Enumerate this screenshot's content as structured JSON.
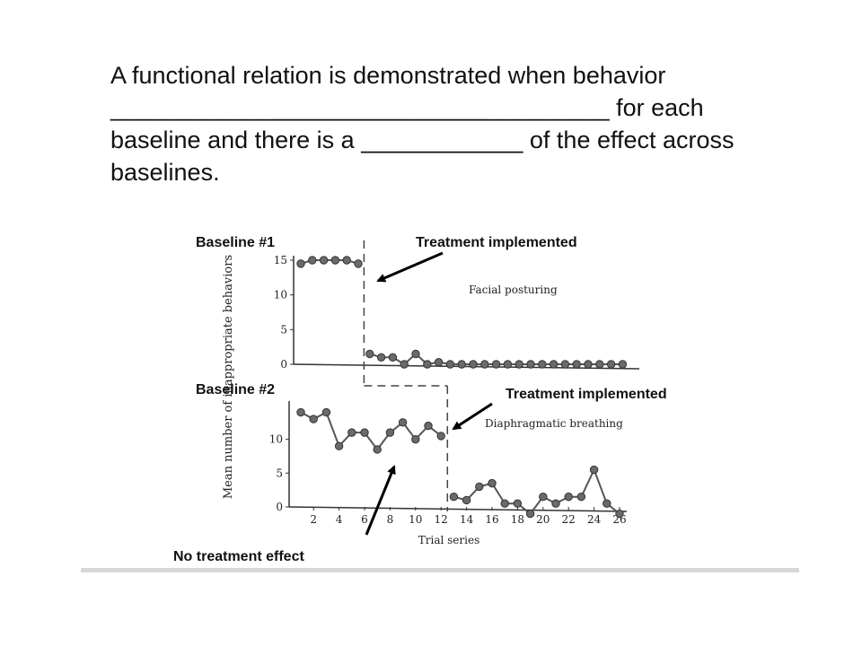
{
  "slide": {
    "line1": "A functional relation is demonstrated when behavior",
    "blank1": "_____________________________________",
    "line2_end": " for each",
    "line3_start": "baseline and there is a ",
    "blank2": "____________",
    "line3_end": " of the effect across",
    "line4": "baselines."
  },
  "callouts": {
    "baseline1": "Baseline #1",
    "treatment1": "Treatment implemented",
    "baseline2": "Baseline #2",
    "treatment2": "Treatment implemented",
    "no_effect": "No treatment effect"
  },
  "chart_data": [
    {
      "type": "line",
      "title": "Facial posturing",
      "ylabel": "Mean number of inappropriate behaviors",
      "ylim": [
        0,
        15
      ],
      "yticks": [
        "0",
        "5",
        "10",
        "15"
      ],
      "phase_change_after_x": 6,
      "x": [
        1,
        2,
        3,
        4,
        5,
        6,
        7,
        8,
        9,
        10,
        11,
        12,
        13,
        14,
        15,
        16,
        17,
        18,
        19,
        20,
        21,
        22,
        23,
        24,
        25,
        26,
        27,
        28,
        29
      ],
      "values": [
        14.5,
        15,
        15,
        15,
        15,
        14.5,
        1.5,
        1,
        1,
        0,
        1.5,
        0,
        0.3,
        0,
        0,
        0,
        0,
        0,
        0,
        0,
        0,
        0,
        0,
        0,
        0,
        0,
        0,
        0,
        0
      ]
    },
    {
      "type": "line",
      "title": "Diaphragmatic breathing",
      "xlabel": "Trial series",
      "ylim": [
        0,
        15
      ],
      "yticks": [
        "0",
        "5",
        "10"
      ],
      "xticks": [
        "2",
        "4",
        "6",
        "8",
        "10",
        "12",
        "14",
        "16",
        "18",
        "20",
        "22",
        "24",
        "26"
      ],
      "phase_change_after_x": 12,
      "x": [
        1,
        2,
        3,
        4,
        5,
        6,
        7,
        8,
        9,
        10,
        11,
        12,
        13,
        14,
        15,
        16,
        17,
        18,
        19,
        20,
        21,
        22,
        23,
        24,
        25,
        26
      ],
      "values": [
        14,
        13,
        14,
        9,
        11,
        11,
        8.5,
        11,
        12.5,
        10,
        12,
        10.5,
        1.5,
        1,
        3,
        3.5,
        0.5,
        0.5,
        -1,
        1.5,
        0.5,
        1.5,
        1.5,
        5.5,
        0.5,
        -1
      ]
    }
  ]
}
